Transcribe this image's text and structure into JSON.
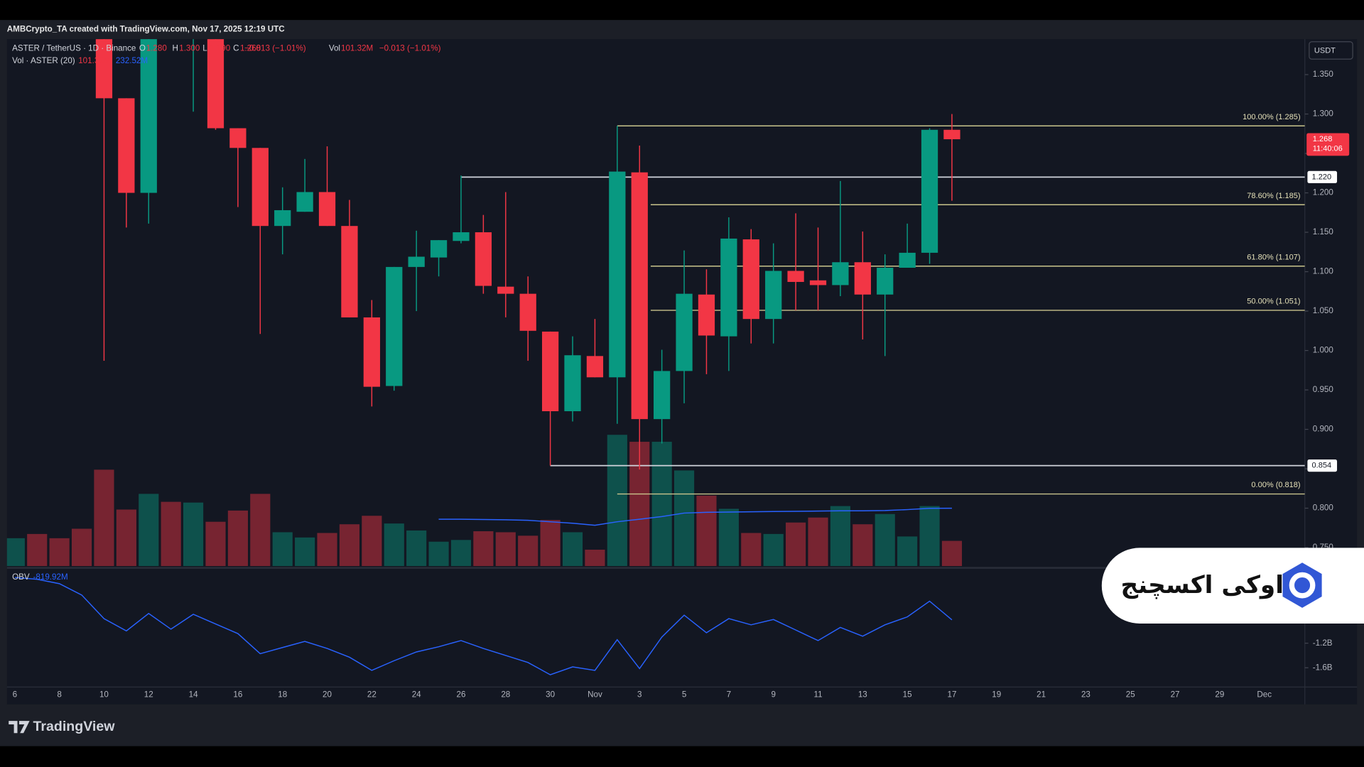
{
  "header": {
    "credit": "AMBCrypto_TA created with TradingView.com, Nov 17, 2025 12:19 UTC"
  },
  "chart_data": {
    "type": "candlestick",
    "symbol": "ASTER / TetherUS · 1D · Binance",
    "currency": "USDT",
    "up_color": "#089981",
    "down_color": "#f23645",
    "categories": [
      "6",
      null,
      "8",
      null,
      "10",
      null,
      "12",
      null,
      "14",
      null,
      "16",
      null,
      "18",
      null,
      "20",
      null,
      "22",
      null,
      "24",
      null,
      "26",
      null,
      "28",
      null,
      "30",
      null,
      "Nov",
      null,
      "3",
      null,
      "5",
      null,
      "7",
      null,
      "9",
      null,
      "11",
      null,
      "13",
      null,
      "15",
      null,
      "17"
    ],
    "future_ticks": [
      "19",
      "21",
      "23",
      "25",
      "27",
      "29",
      "Dec"
    ],
    "open": [
      null,
      null,
      null,
      null,
      1.42,
      1.32,
      1.2,
      null,
      1.4,
      1.42,
      1.282,
      1.257,
      1.158,
      1.176,
      1.201,
      1.158,
      1.042,
      0.955,
      1.106,
      1.118,
      1.139,
      1.15,
      1.081,
      1.072,
      1.024,
      0.923,
      0.993,
      0.966,
      1.226,
      0.913,
      0.974,
      1.071,
      1.018,
      1.141,
      1.04,
      1.101,
      1.089,
      1.083,
      1.112,
      1.071,
      1.105,
      1.124,
      1.28
    ],
    "high": [
      null,
      null,
      null,
      null,
      1.45,
      1.32,
      1.45,
      null,
      1.45,
      1.45,
      1.282,
      1.257,
      1.207,
      1.243,
      1.259,
      1.191,
      1.064,
      1.106,
      1.152,
      1.14,
      1.222,
      1.172,
      1.201,
      1.094,
      1.024,
      1.018,
      1.04,
      1.285,
      1.26,
      1.001,
      1.127,
      1.103,
      1.169,
      1.154,
      1.136,
      1.174,
      1.156,
      1.215,
      1.151,
      1.122,
      1.161,
      1.282,
      1.3
    ],
    "low": [
      null,
      null,
      null,
      null,
      0.987,
      1.156,
      1.161,
      null,
      1.303,
      1.28,
      1.182,
      1.021,
      1.122,
      1.176,
      1.158,
      1.042,
      0.929,
      0.949,
      1.05,
      1.094,
      1.136,
      1.072,
      1.042,
      0.987,
      0.854,
      0.91,
      0.966,
      0.907,
      0.849,
      0.882,
      0.933,
      0.97,
      0.974,
      1.009,
      1.009,
      1.051,
      1.051,
      1.069,
      1.014,
      0.993,
      1.105,
      1.11,
      1.19
    ],
    "close": [
      null,
      null,
      null,
      null,
      1.32,
      1.2,
      1.42,
      null,
      1.42,
      1.282,
      1.257,
      1.158,
      1.178,
      1.201,
      1.158,
      1.042,
      0.954,
      1.106,
      1.119,
      1.14,
      1.15,
      1.082,
      1.072,
      1.025,
      0.923,
      0.994,
      0.966,
      1.227,
      0.913,
      0.974,
      1.072,
      1.019,
      1.142,
      1.04,
      1.101,
      1.087,
      1.083,
      1.112,
      1.071,
      1.105,
      1.124,
      1.28,
      1.268
    ],
    "ohlc_keys": [
      "O",
      "H",
      "L",
      "C"
    ],
    "last_labels": [
      "1.280",
      "1.300",
      "1.190",
      "1.268"
    ],
    "change": "−0.013 (−1.01%)",
    "countdown": "11:40:06",
    "ylim": [
      0.7265,
      1.395
    ],
    "yticks": [
      {
        "value": 0.75,
        "label": "0.750"
      },
      {
        "value": 0.8,
        "label": "0.800"
      },
      {
        "value": 0.85,
        "label": "0.850"
      },
      {
        "value": 0.9,
        "label": "0.900"
      },
      {
        "value": 0.95,
        "label": "0.950"
      },
      {
        "value": 1,
        "label": "1.000"
      },
      {
        "value": 1.05,
        "label": "1.050"
      },
      {
        "value": 1.1,
        "label": "1.100"
      },
      {
        "value": 1.15,
        "label": "1.150"
      },
      {
        "value": 1.2,
        "label": "1.200"
      },
      {
        "value": 1.25,
        "label": "1.250"
      },
      {
        "value": 1.3,
        "label": "1.300"
      },
      {
        "value": 1.35,
        "label": "1.350"
      }
    ],
    "hlines": [
      {
        "value": 1.22,
        "label": "1.220"
      },
      {
        "value": 0.854,
        "label": "0.854"
      }
    ],
    "hline_color": "#d1d4dc",
    "fib": {
      "color": "#c9c48c",
      "levels": [
        {
          "label": "100.00% (1.285)",
          "value": 1.285
        },
        {
          "label": "78.60% (1.185)",
          "value": 1.185
        },
        {
          "label": "61.80% (1.107)",
          "value": 1.107
        },
        {
          "label": "50.00% (1.051)",
          "value": 1.051
        },
        {
          "label": "0.00% (0.818)",
          "value": 0.818
        }
      ]
    },
    "volume": {
      "name": "Vol",
      "legend": "Vol · ASTER (20)",
      "values": [
        112,
        129,
        112,
        150,
        387,
        227,
        290,
        258,
        255,
        178,
        223,
        290,
        136,
        115,
        133,
        168,
        202,
        171,
        143,
        98,
        105,
        140,
        136,
        122,
        185,
        136,
        66,
        527,
        499,
        499,
        384,
        283,
        230,
        133,
        129,
        175,
        195,
        241,
        168,
        209,
        119,
        241,
        101.32
      ],
      "up": [
        true,
        false,
        false,
        false,
        false,
        false,
        true,
        false,
        true,
        false,
        false,
        false,
        true,
        true,
        false,
        false,
        false,
        true,
        true,
        true,
        true,
        false,
        false,
        false,
        false,
        true,
        false,
        true,
        false,
        true,
        true,
        false,
        true,
        false,
        true,
        false,
        false,
        true,
        false,
        true,
        true,
        true,
        false
      ],
      "value_labels": [
        null,
        null,
        null,
        null,
        null,
        null,
        null,
        null,
        null,
        null,
        null,
        null,
        null,
        null,
        null,
        null,
        null,
        null,
        null,
        null,
        null,
        null,
        null,
        null,
        null,
        null,
        null,
        null,
        null,
        null,
        null,
        null,
        null,
        null,
        null,
        null,
        null,
        null,
        null,
        null,
        null,
        null,
        "101.32M"
      ],
      "ma": {
        "color": "#2962ff",
        "values": [
          null,
          null,
          null,
          null,
          null,
          null,
          null,
          null,
          null,
          null,
          null,
          null,
          null,
          null,
          null,
          null,
          null,
          null,
          null,
          188,
          188,
          187,
          186,
          184,
          178,
          172,
          164,
          178,
          188,
          199,
          213,
          216,
          217,
          218,
          219,
          220,
          221,
          222,
          222,
          223,
          227,
          232,
          232.52
        ],
        "value_labels": [
          null,
          null,
          null,
          null,
          null,
          null,
          null,
          null,
          null,
          null,
          null,
          null,
          null,
          null,
          null,
          null,
          null,
          null,
          null,
          null,
          null,
          null,
          null,
          null,
          null,
          null,
          null,
          null,
          null,
          null,
          null,
          null,
          null,
          null,
          null,
          null,
          null,
          null,
          null,
          null,
          null,
          null,
          "232.52M"
        ]
      }
    },
    "obv": {
      "name": "OBV",
      "color": "#2962ff",
      "values": [
        -0.129,
        -0.157,
        -0.229,
        -0.414,
        -0.8,
        -1.0,
        -0.714,
        -0.971,
        -0.729,
        -0.886,
        -1.043,
        -1.371,
        -1.271,
        -1.171,
        -1.286,
        -1.429,
        -1.643,
        -1.486,
        -1.343,
        -1.257,
        -1.157,
        -1.286,
        -1.4,
        -1.514,
        -1.714,
        -1.586,
        -1.643,
        -1.143,
        -1.614,
        -1.1,
        -0.743,
        -1.029,
        -0.8,
        -0.9,
        -0.814,
        -0.986,
        -1.157,
        -0.943,
        -1.086,
        -0.9,
        -0.771,
        -0.514,
        -0.81992
      ],
      "value_labels": [
        null,
        null,
        null,
        null,
        null,
        null,
        null,
        null,
        null,
        null,
        null,
        null,
        null,
        null,
        null,
        null,
        null,
        null,
        null,
        null,
        null,
        null,
        null,
        null,
        null,
        null,
        null,
        null,
        null,
        null,
        null,
        null,
        null,
        null,
        null,
        null,
        null,
        null,
        null,
        null,
        null,
        null,
        "-819.92M"
      ],
      "ylim": [
        -1.914,
        0
      ],
      "yticks": [
        {
          "value": -1.2,
          "label": "-1.2B"
        },
        {
          "value": -1.6,
          "label": "-1.6B"
        }
      ]
    }
  },
  "watermark": {
    "text": "اوکی اکسچنج"
  },
  "footer": {
    "brand": "TradingView"
  }
}
